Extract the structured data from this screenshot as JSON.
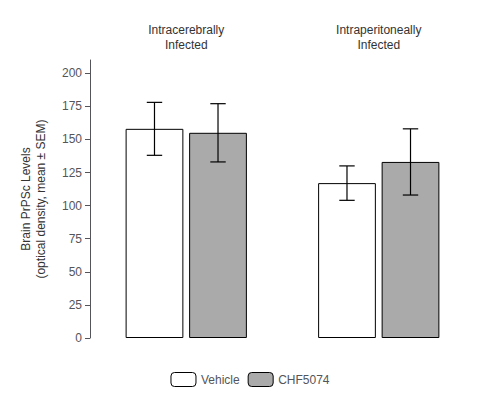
{
  "chart_data": {
    "type": "bar",
    "categories": [
      "Intracerebrally\nInfected",
      "Intraperitoneally\nInfected"
    ],
    "series": [
      {
        "name": "Vehicle",
        "color": "#ffffff",
        "values": [
          158,
          117
        ],
        "errors": [
          20,
          13
        ]
      },
      {
        "name": "CHF5074",
        "color": "#aaaaaa",
        "values": [
          155,
          133
        ],
        "errors": [
          22,
          25
        ]
      }
    ],
    "y_label": "Brain PrPSc Levels\n(optical density, mean ± SEM)",
    "ylim": [
      0,
      210
    ],
    "yticks": [
      0,
      25,
      50,
      75,
      100,
      125,
      150,
      175,
      200
    ],
    "grid": false,
    "legend": "bottom"
  }
}
